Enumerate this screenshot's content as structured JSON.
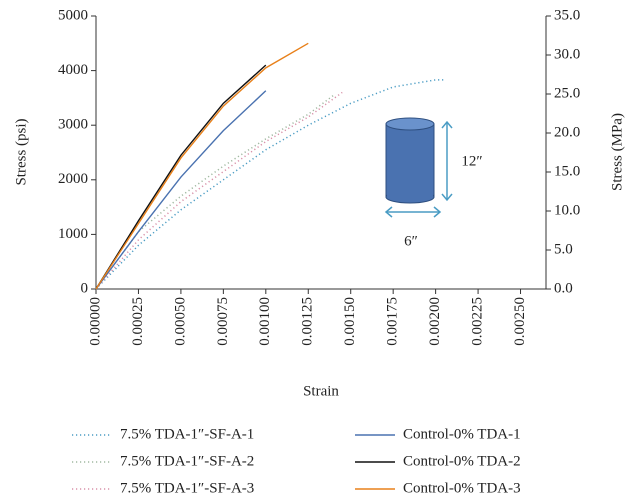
{
  "chart_data": {
    "type": "line",
    "xlabel": "Strain",
    "ylabel": "Stress (psi)",
    "y2label": "Stress (MPa)",
    "xlim": [
      0,
      0.00265
    ],
    "xticks": [
      {
        "value": 0,
        "label": "0.00000"
      },
      {
        "value": 0.00025,
        "label": "0.00025"
      },
      {
        "value": 0.0005,
        "label": "0.00050"
      },
      {
        "value": 0.00075,
        "label": "0.00075"
      },
      {
        "value": 0.001,
        "label": "0.00100"
      },
      {
        "value": 0.00125,
        "label": "0.00125"
      },
      {
        "value": 0.0015,
        "label": "0.00150"
      },
      {
        "value": 0.00175,
        "label": "0.00175"
      },
      {
        "value": 0.002,
        "label": "0.00200"
      },
      {
        "value": 0.00225,
        "label": "0.00225"
      },
      {
        "value": 0.0025,
        "label": "0.00250"
      }
    ],
    "ylim": [
      0,
      5000
    ],
    "yticks": [
      0,
      1000,
      2000,
      3000,
      4000,
      5000
    ],
    "y2lim": [
      0,
      35
    ],
    "y2ticks": [
      {
        "value": 0,
        "label": "0.0"
      },
      {
        "value": 5,
        "label": "5.0"
      },
      {
        "value": 10,
        "label": "10.0"
      },
      {
        "value": 15,
        "label": "15.0"
      },
      {
        "value": 20,
        "label": "20.0"
      },
      {
        "value": 25,
        "label": "25.0"
      },
      {
        "value": 30,
        "label": "30.0"
      },
      {
        "value": 35,
        "label": "35.0"
      }
    ],
    "legend": "bottom",
    "annotations": [
      "12″",
      "6″"
    ],
    "series": [
      {
        "name": "7.5% TDA-1″-SF-A-1",
        "color": "#4a9cc4",
        "style": "dotted",
        "x": [
          0,
          0.00025,
          0.0005,
          0.00075,
          0.001,
          0.00125,
          0.0015,
          0.00175,
          0.002,
          0.00205
        ],
        "values": [
          0,
          800,
          1450,
          2000,
          2550,
          3000,
          3400,
          3700,
          3830,
          3830
        ]
      },
      {
        "name": "7.5% TDA-1″-SF-A-2",
        "color": "#a0b8a0",
        "style": "dotted",
        "x": [
          0,
          0.00025,
          0.0005,
          0.00075,
          0.001,
          0.00125,
          0.0014
        ],
        "values": [
          0,
          1050,
          1700,
          2250,
          2750,
          3200,
          3550
        ]
      },
      {
        "name": "7.5% TDA-1″-SF-A-3",
        "color": "#d890a8",
        "style": "dotted",
        "x": [
          0,
          0.00025,
          0.0005,
          0.00075,
          0.001,
          0.00125,
          0.00145
        ],
        "values": [
          0,
          900,
          1600,
          2150,
          2700,
          3150,
          3600
        ]
      },
      {
        "name": "Control-0% TDA-1",
        "color": "#4a72b0",
        "style": "solid",
        "x": [
          0,
          0.00025,
          0.0005,
          0.00075,
          0.001
        ],
        "values": [
          0,
          1050,
          2050,
          2900,
          3630
        ]
      },
      {
        "name": "Control-0% TDA-2",
        "color": "#111111",
        "style": "solid",
        "x": [
          0,
          0.00025,
          0.0005,
          0.00075,
          0.001
        ],
        "values": [
          0,
          1250,
          2450,
          3400,
          4100
        ]
      },
      {
        "name": "Control-0% TDA-3",
        "color": "#e8801a",
        "style": "solid",
        "x": [
          0,
          0.00025,
          0.0005,
          0.00075,
          0.001,
          0.00125
        ],
        "values": [
          0,
          1200,
          2400,
          3350,
          4050,
          4500
        ]
      }
    ]
  }
}
